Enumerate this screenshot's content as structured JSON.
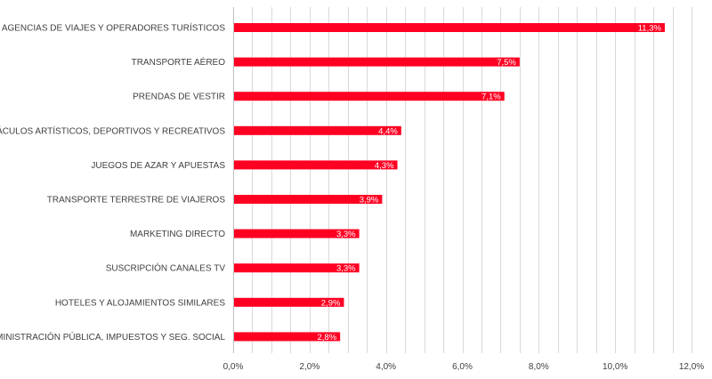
{
  "chart_data": {
    "type": "bar",
    "orientation": "horizontal",
    "categories": [
      "AGENCIAS DE VIAJES Y OPERADORES TURÍSTICOS",
      "TRANSPORTE AÉREO",
      "PRENDAS DE VESTIR",
      "ESPECTÁCULOS ARTÍSTICOS, DEPORTIVOS Y RECREATIVOS",
      "JUEGOS DE AZAR Y APUESTAS",
      "TRANSPORTE TERRESTRE DE VIAJEROS",
      "MARKETING DIRECTO",
      "SUSCRIPCIÓN CANALES TV",
      "HOTELES  Y ALOJAMIENTOS SIMILARES",
      "ADMINISTRACIÓN PÚBLICA, IMPUESTOS Y SEG. SOCIAL"
    ],
    "values": [
      11.3,
      7.5,
      7.1,
      4.4,
      4.3,
      3.9,
      3.3,
      3.3,
      2.9,
      2.8
    ],
    "data_labels": [
      "11,3%",
      "7,5%",
      "7,1%",
      "4,4%",
      "4,3%",
      "3,9%",
      "3,3%",
      "3,3%",
      "2,9%",
      "2,8%"
    ],
    "x_ticks": [
      0,
      2,
      4,
      6,
      8,
      10,
      12
    ],
    "x_tick_labels": [
      "0,0%",
      "2,0%",
      "4,0%",
      "6,0%",
      "8,0%",
      "10,0%",
      "12,0%"
    ],
    "xlim": [
      0,
      12
    ],
    "grid": true,
    "bar_color": "#ff0022",
    "title": "",
    "xlabel": "",
    "ylabel": ""
  }
}
